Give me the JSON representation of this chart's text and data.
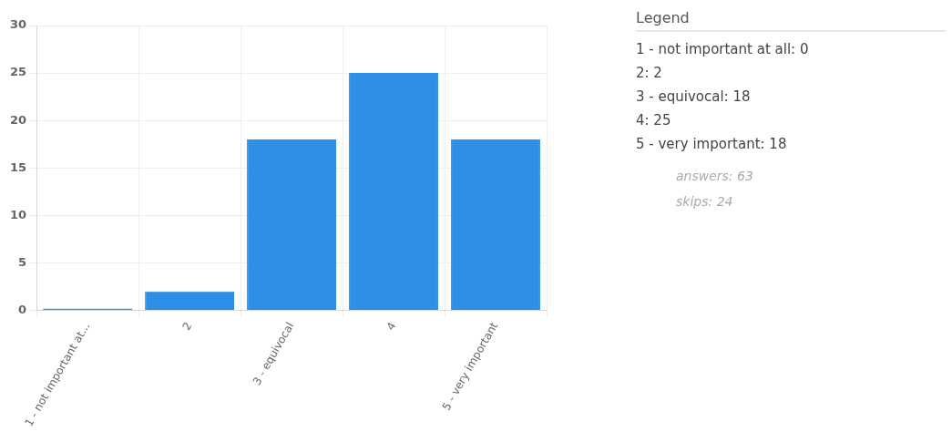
{
  "chart_data": {
    "type": "bar",
    "categories": [
      "1 - not important at...",
      "2",
      "3 - equivocal",
      "4",
      "5 - very important"
    ],
    "values": [
      0,
      2,
      18,
      25,
      18
    ],
    "color": "#2d8fe6",
    "ylim": [
      0,
      30
    ],
    "yticks": [
      0,
      5,
      10,
      15,
      20,
      25,
      30
    ],
    "grid": true,
    "annotations": [
      "Legend",
      "1 - not important at all: 0",
      "2: 2",
      "3 - equivocal: 18",
      "4: 25",
      "5 - very important: 18",
      "answers: 63",
      "skips: 24"
    ]
  }
}
